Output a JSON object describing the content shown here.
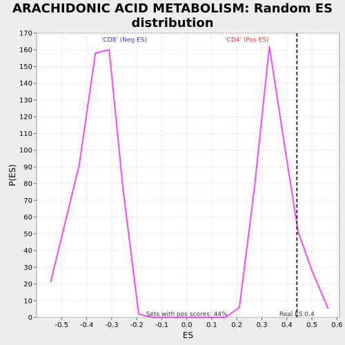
{
  "chart_data": {
    "type": "line",
    "title": "ARACHIDONIC ACID METABOLISM: Random ES distribution",
    "xlabel": "ES",
    "ylabel": "P(ES)",
    "xlim": [
      -0.6,
      0.61
    ],
    "ylim": [
      0,
      170
    ],
    "xticks": [
      -0.5,
      -0.4,
      -0.3,
      -0.2,
      -0.1,
      0.0,
      0.1,
      0.2,
      0.3,
      0.4,
      0.5,
      0.6
    ],
    "xtick_labels": [
      "-0.5",
      "-0.4",
      "-0.3",
      "-0.2",
      "-0.1",
      "0.0",
      "0.1",
      "0.2",
      "0.3",
      "0.4",
      "0.5",
      "0.6"
    ],
    "yticks": [
      0,
      10,
      20,
      30,
      40,
      50,
      60,
      70,
      80,
      90,
      100,
      110,
      120,
      130,
      140,
      150,
      160,
      170
    ],
    "grid": true,
    "series": [
      {
        "color": "#ff44ff",
        "x": [
          -0.544,
          -0.43,
          -0.365,
          -0.31,
          -0.255,
          -0.192,
          -0.135,
          0.0,
          0.1,
          0.155,
          0.21,
          0.27,
          0.33,
          0.385,
          0.445,
          0.5,
          0.565
        ],
        "y": [
          21,
          91,
          158,
          160,
          77,
          2,
          0,
          0,
          0,
          0,
          6,
          77,
          162,
          108,
          51,
          28,
          5
        ]
      }
    ],
    "vline": {
      "x": 0.44,
      "color": "#333333",
      "label": "Real ES 0.4"
    },
    "annotations": [
      {
        "text": "'CD8' (Neg ES)",
        "x": -0.25,
        "y": 166,
        "color": "#3333cc"
      },
      {
        "text": "'CD4' (Pos ES)",
        "x": 0.24,
        "y": 166,
        "color": "#dd3333"
      },
      {
        "text": "Sets with pos scores: 44%",
        "x": -0.0,
        "y": 2,
        "color": "#333333"
      }
    ]
  }
}
